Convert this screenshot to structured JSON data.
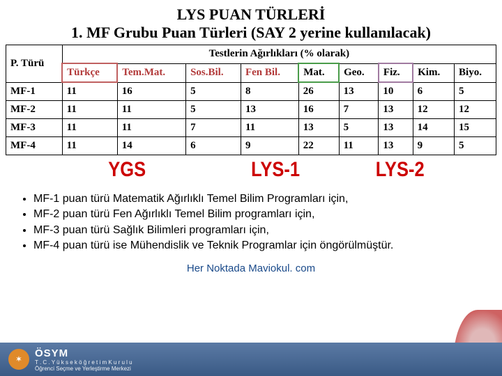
{
  "title": "LYS PUAN TÜRLERİ",
  "subtitle": "1. MF Grubu Puan Türleri (SAY 2 yerine kullanılacak)",
  "table": {
    "superheader": "Testlerin Ağırlıkları (% olarak)",
    "rowheader": "P. Türü",
    "cols_ygs": [
      "Türkçe",
      "Tem.Mat.",
      "Sos.Bil.",
      "Fen Bil."
    ],
    "cols_lys1": [
      "Mat.",
      "Geo."
    ],
    "cols_lys2": [
      "Fiz.",
      "Kim.",
      "Biyo."
    ],
    "rows": [
      {
        "label": "MF-1",
        "ygs": [
          "11",
          "16",
          "5",
          "8"
        ],
        "lys1": [
          "26",
          "13"
        ],
        "lys2": [
          "10",
          "6",
          "5"
        ]
      },
      {
        "label": "MF-2",
        "ygs": [
          "11",
          "11",
          "5",
          "13"
        ],
        "lys1": [
          "16",
          "7"
        ],
        "lys2": [
          "13",
          "12",
          "12"
        ]
      },
      {
        "label": "MF-3",
        "ygs": [
          "11",
          "11",
          "7",
          "11"
        ],
        "lys1": [
          "13",
          "5"
        ],
        "lys2": [
          "13",
          "14",
          "15"
        ]
      },
      {
        "label": "MF-4",
        "ygs": [
          "11",
          "14",
          "6",
          "9"
        ],
        "lys1": [
          "22",
          "11"
        ],
        "lys2": [
          "13",
          "9",
          "5"
        ]
      }
    ]
  },
  "group_labels": {
    "ygs": "YGS",
    "lys1": "LYS-1",
    "lys2": "LYS-2"
  },
  "bullets": [
    "MF-1 puan türü Matematik Ağırlıklı Temel Bilim Programları için,",
    "MF-2 puan türü Fen Ağırlıklı Temel Bilim programları için,",
    "MF-3 puan türü Sağlık Bilimleri programları için,",
    "MF-4 puan türü ise Mühendislik ve Teknik Programlar için öngörülmüştür."
  ],
  "footer_link": "Her Noktada Maviokul. com",
  "osym": {
    "short": "ÖSYM",
    "line2": "T . C .  Y ü k s e k ö ğ r e t i m  K u r u l u",
    "line3": "Öğrenci Seçme ve Yerleştirme Merkezi"
  },
  "colors": {
    "ygs_accent": "#b23a3a",
    "group_label": "#cc0000",
    "footer_gradient_top": "#5b7aa5",
    "footer_gradient_bottom": "#3a5a85",
    "link": "#1a4a8a"
  }
}
